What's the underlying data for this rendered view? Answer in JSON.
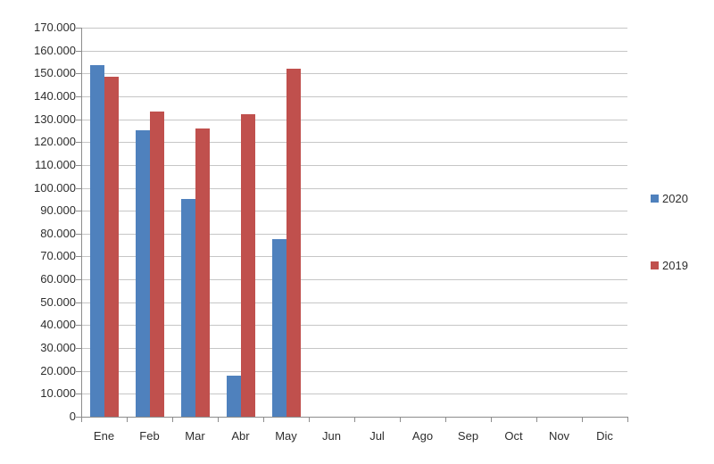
{
  "chart_data": {
    "type": "bar",
    "title": "",
    "categories": [
      "Ene",
      "Feb",
      "Mar",
      "Abr",
      "May",
      "Jun",
      "Jul",
      "Ago",
      "Sep",
      "Oct",
      "Nov",
      "Dic"
    ],
    "series": [
      {
        "name": "2020",
        "color": "#4F81BD",
        "values": [
          153500,
          125000,
          95000,
          18000,
          77500,
          0,
          0,
          0,
          0,
          0,
          0,
          0
        ]
      },
      {
        "name": "2019",
        "color": "#C0504D",
        "values": [
          148500,
          133500,
          126000,
          132000,
          152000,
          0,
          0,
          0,
          0,
          0,
          0,
          0
        ]
      }
    ],
    "xlabel": "",
    "ylabel": "",
    "ylim": [
      0,
      170000
    ],
    "ytick_step": 10000,
    "ytick_labels": [
      "0",
      "10.000",
      "20.000",
      "30.000",
      "40.000",
      "50.000",
      "60.000",
      "70.000",
      "80.000",
      "90.000",
      "100.000",
      "110.000",
      "120.000",
      "130.000",
      "140.000",
      "150.000",
      "160.000",
      "170.000"
    ],
    "grid": true,
    "legend_position": "right",
    "legend_entries": [
      {
        "label": "2020",
        "color": "#4F81BD"
      },
      {
        "label": "2019",
        "color": "#C0504D"
      }
    ]
  },
  "colors": {
    "background": "#ffffff",
    "gridline": "#c6c6c6",
    "axis": "#8c8c8c",
    "text": "#2e2e2e"
  }
}
